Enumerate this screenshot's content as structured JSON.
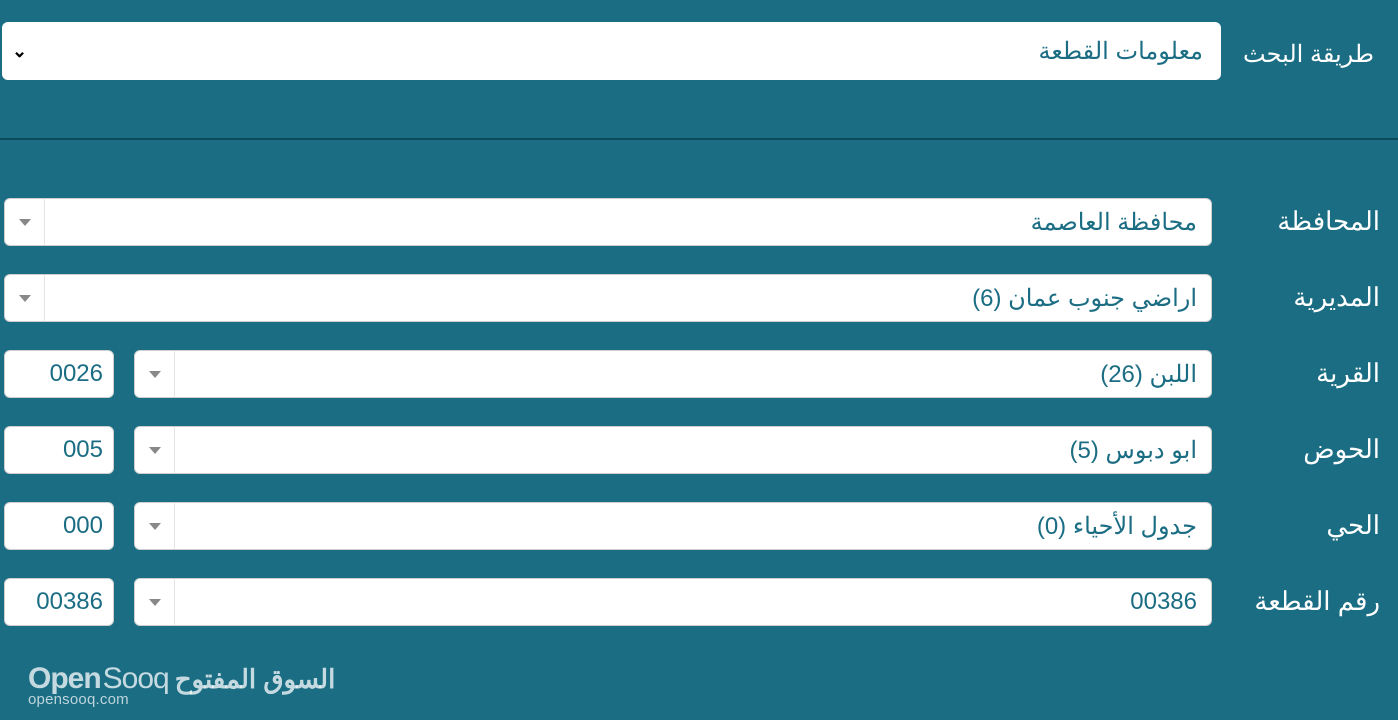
{
  "colors": {
    "background": "#1b6d83",
    "field_bg": "#ffffff",
    "text_on_bg": "#ffffff",
    "field_text": "#1b6d83",
    "divider": "#0a4a5b",
    "field_border": "#cfcfcf",
    "caret": "#888888"
  },
  "search_method": {
    "label": "طريقة البحث",
    "value": "معلومات القطعة"
  },
  "fields": {
    "governorate": {
      "label": "المحافظة",
      "value": "محافظة العاصمة"
    },
    "directorate": {
      "label": "المديرية",
      "value": "اراضي جنوب عمان (6)"
    },
    "village": {
      "label": "القرية",
      "value": "اللبن (26)",
      "code": "0026"
    },
    "basin": {
      "label": "الحوض",
      "value": "ابو دبوس (5)",
      "code": "005"
    },
    "neighborhood": {
      "label": "الحي",
      "value": "جدول الأحياء (0)",
      "code": "000"
    },
    "parcel": {
      "label": "رقم القطعة",
      "value": "00386",
      "code": "00386"
    }
  },
  "watermark": {
    "brand_ar": "السوق المفتوح",
    "brand_en_1": "Open",
    "brand_en_2": "Sooq",
    "url": "opensooq.com"
  }
}
